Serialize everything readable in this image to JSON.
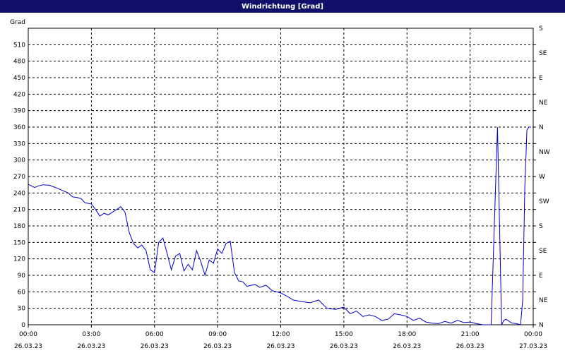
{
  "window": {
    "title": "Windrichtung [Grad]"
  },
  "colors": {
    "title_bg": "#10106b",
    "title_fg": "#ffffff",
    "series": "#0000cc",
    "grid": "#000000"
  },
  "chart_data": {
    "type": "line",
    "title": "Windrichtung [Grad]",
    "ylabel": "Grad",
    "ylim": [
      0,
      540
    ],
    "y_ticks": [
      0,
      30,
      60,
      90,
      120,
      150,
      180,
      210,
      240,
      270,
      300,
      330,
      360,
      390,
      420,
      450,
      480,
      510
    ],
    "right_axis_labels": [
      "N",
      "NE",
      "E",
      "SE",
      "S",
      "SW",
      "W",
      "NW",
      "N",
      "NE",
      "E",
      "SE",
      "S"
    ],
    "x_unit": "hours after 26.03.23 00:00",
    "xlim": [
      0,
      24
    ],
    "x_ticks": [
      {
        "time": "00:00",
        "date": "26.03.23"
      },
      {
        "time": "03:00",
        "date": "26.03.23"
      },
      {
        "time": "06:00",
        "date": "26.03.23"
      },
      {
        "time": "09:00",
        "date": "26.03.23"
      },
      {
        "time": "12:00",
        "date": "26.03.23"
      },
      {
        "time": "15:00",
        "date": "26.03.23"
      },
      {
        "time": "18:00",
        "date": "26.03.23"
      },
      {
        "time": "21:00",
        "date": "26.03.23"
      },
      {
        "time": "00:00",
        "date": "27.03.23"
      }
    ],
    "grid": true,
    "series": [
      {
        "x": [
          0,
          0.3,
          0.5,
          0.7,
          1.0,
          1.3,
          1.6,
          1.9,
          2.1,
          2.3,
          2.5,
          2.7,
          3.0,
          3.2,
          3.4,
          3.6,
          3.8,
          4.0,
          4.2,
          4.4,
          4.6,
          4.8,
          5.0,
          5.2,
          5.4,
          5.6,
          5.8,
          6.0,
          6.2,
          6.4,
          6.6,
          6.8,
          7.0,
          7.2,
          7.4,
          7.6,
          7.8,
          8.0,
          8.2,
          8.4,
          8.6,
          8.8,
          9.0,
          9.2,
          9.4,
          9.6,
          9.8,
          10.0,
          10.2,
          10.4,
          10.6,
          10.8,
          11.0,
          11.3,
          11.6,
          12.0,
          12.3,
          12.6,
          13.0,
          13.4,
          13.8,
          14.2,
          14.6,
          15.0,
          15.3,
          15.6,
          15.9,
          16.2,
          16.5,
          16.8,
          17.1,
          17.4,
          17.7,
          18.0,
          18.3,
          18.6,
          18.9,
          19.2,
          19.5,
          19.8,
          20.1,
          20.4,
          20.7,
          21.0,
          21.3,
          21.6,
          22.0,
          22.3,
          22.5,
          22.6,
          22.7,
          22.8,
          22.9,
          23.0,
          23.2,
          23.4,
          23.5,
          23.6,
          23.7,
          23.8,
          23.9
        ],
        "y": [
          256,
          250,
          253,
          255,
          254,
          250,
          245,
          240,
          233,
          232,
          230,
          222,
          220,
          210,
          198,
          203,
          200,
          205,
          210,
          215,
          205,
          168,
          148,
          140,
          145,
          135,
          100,
          95,
          150,
          158,
          130,
          100,
          125,
          130,
          98,
          110,
          100,
          135,
          115,
          90,
          118,
          112,
          138,
          130,
          148,
          152,
          95,
          80,
          78,
          70,
          72,
          73,
          68,
          72,
          62,
          58,
          52,
          45,
          42,
          40,
          45,
          30,
          28,
          32,
          20,
          25,
          15,
          18,
          15,
          8,
          10,
          20,
          18,
          15,
          8,
          12,
          5,
          3,
          2,
          6,
          3,
          8,
          4,
          5,
          2,
          0,
          0,
          360,
          0,
          8,
          10,
          8,
          5,
          3,
          2,
          0,
          45,
          250,
          355,
          360,
          360
        ]
      }
    ]
  }
}
